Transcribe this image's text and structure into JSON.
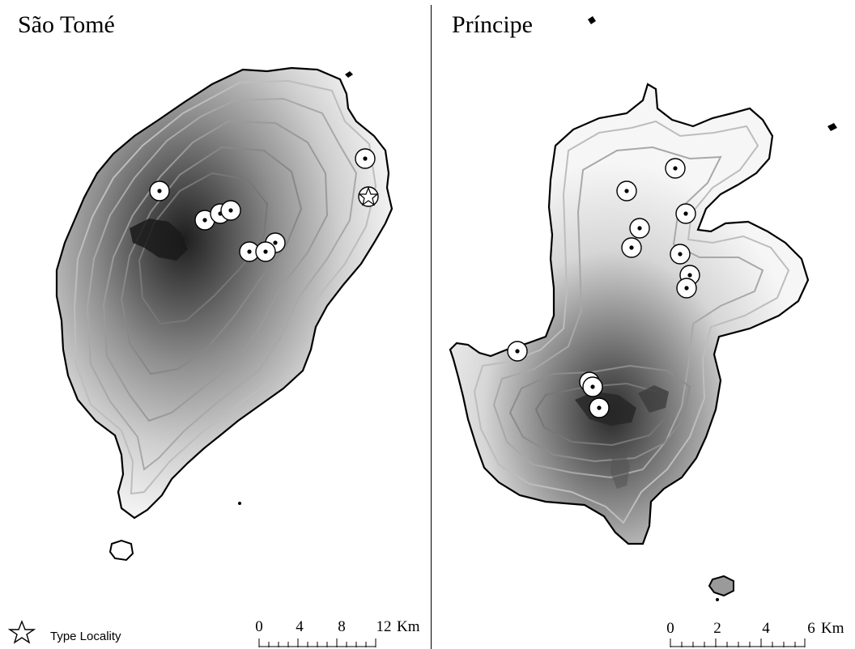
{
  "islands": [
    {
      "title": "São Tomé",
      "scale": {
        "ticks": [
          "0",
          "4",
          "8",
          "12"
        ],
        "unit": "Km"
      },
      "sites": [
        {
          "kind": "record"
        },
        {
          "kind": "record"
        },
        {
          "kind": "record"
        },
        {
          "kind": "record"
        },
        {
          "kind": "record"
        },
        {
          "kind": "record"
        },
        {
          "kind": "record"
        },
        {
          "kind": "record"
        },
        {
          "kind": "type_locality"
        }
      ]
    },
    {
      "title": "Príncipe",
      "scale": {
        "ticks": [
          "0",
          "2",
          "4",
          "6"
        ],
        "unit": "Km"
      },
      "sites": [
        {
          "kind": "record"
        },
        {
          "kind": "record"
        },
        {
          "kind": "record"
        },
        {
          "kind": "record"
        },
        {
          "kind": "record"
        },
        {
          "kind": "record"
        },
        {
          "kind": "record"
        },
        {
          "kind": "record"
        },
        {
          "kind": "record"
        },
        {
          "kind": "record"
        },
        {
          "kind": "record"
        },
        {
          "kind": "record"
        }
      ]
    }
  ],
  "legend": {
    "icon": "star-icon",
    "label": "Type Locality"
  },
  "colors": {
    "coast": "#000000",
    "contour_light": "#bdbdbd",
    "contour_mid": "#8c8c8c",
    "relief_dark": "#2e2e2e",
    "marker_fill": "#ffffff"
  }
}
